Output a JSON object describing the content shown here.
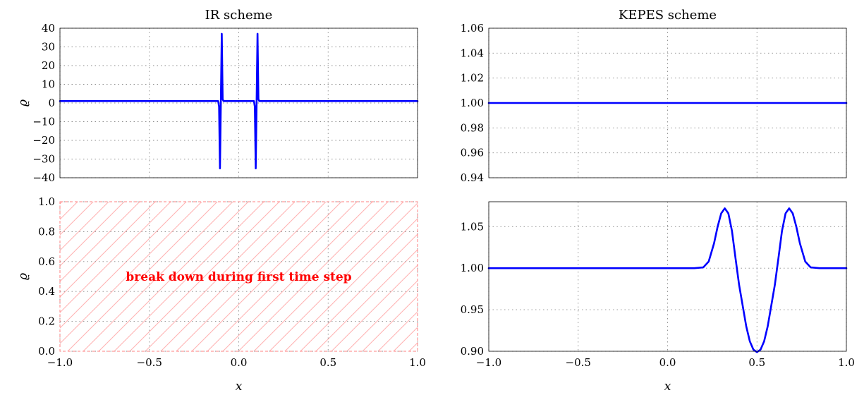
{
  "colors": {
    "series": "#0000ff",
    "breakdown": "#ff0000",
    "hatch": "#ffb3b3"
  },
  "chart_data": [
    {
      "id": "tl",
      "type": "line",
      "title": "IR scheme",
      "xlabel": "",
      "ylabel": "ϱ",
      "xlim": [
        -1.0,
        1.0
      ],
      "ylim": [
        -40,
        40
      ],
      "xticks": [
        -1.0,
        -0.5,
        0.0,
        0.5,
        1.0
      ],
      "xtick_labels": [
        "",
        "",
        "",
        "",
        ""
      ],
      "yticks": [
        40,
        30,
        20,
        10,
        0,
        -10,
        -20,
        -30,
        -40
      ],
      "ytick_labels": [
        "40",
        "30",
        "20",
        "10",
        "0",
        "−10",
        "−20",
        "−30",
        "−40"
      ],
      "grid": true,
      "series": [
        {
          "x": [
            -1.0,
            -0.115,
            -0.11,
            -0.105,
            -0.1,
            -0.095,
            -0.09,
            -0.085,
            0.085,
            0.09,
            0.095,
            0.1,
            0.105,
            0.11,
            0.115,
            1.0
          ],
          "y": [
            1,
            1,
            -2,
            -35,
            1,
            37,
            2,
            1,
            1,
            -2,
            -35,
            1,
            37,
            2,
            1,
            1
          ]
        }
      ]
    },
    {
      "id": "tr",
      "type": "line",
      "title": "KEPES scheme",
      "xlabel": "",
      "ylabel": "",
      "xlim": [
        -1.0,
        1.0
      ],
      "ylim": [
        0.94,
        1.06
      ],
      "xticks": [
        -1.0,
        -0.5,
        0.0,
        0.5,
        1.0
      ],
      "xtick_labels": [
        "",
        "",
        "",
        "",
        ""
      ],
      "yticks": [
        1.06,
        1.04,
        1.02,
        1.0,
        0.98,
        0.96,
        0.94
      ],
      "ytick_labels": [
        "1.06",
        "1.04",
        "1.02",
        "1.00",
        "0.98",
        "0.96",
        "0.94"
      ],
      "grid": true,
      "series": [
        {
          "x": [
            -1.0,
            1.0
          ],
          "y": [
            1.0,
            1.0
          ]
        }
      ]
    },
    {
      "id": "bl",
      "type": "line",
      "title": "",
      "xlabel": "x",
      "ylabel": "ϱ",
      "xlim": [
        -1.0,
        1.0
      ],
      "ylim": [
        0.0,
        1.0
      ],
      "xticks": [
        -1.0,
        -0.5,
        0.0,
        0.5,
        1.0
      ],
      "xtick_labels": [
        "−1.0",
        "−0.5",
        "0.0",
        "0.5",
        "1.0"
      ],
      "yticks": [
        1.0,
        0.8,
        0.6,
        0.4,
        0.2,
        0.0
      ],
      "ytick_labels": [
        "1.0",
        "0.8",
        "0.6",
        "0.4",
        "0.2",
        "0.0"
      ],
      "grid": true,
      "annotation": "break down during first time step",
      "series": []
    },
    {
      "id": "br",
      "type": "line",
      "title": "",
      "xlabel": "x",
      "ylabel": "",
      "xlim": [
        -1.0,
        1.0
      ],
      "ylim": [
        0.9,
        1.08
      ],
      "xticks": [
        -1.0,
        -0.5,
        0.0,
        0.5,
        1.0
      ],
      "xtick_labels": [
        "−1.0",
        "−0.5",
        "0.0",
        "0.5",
        "1.0"
      ],
      "yticks": [
        1.05,
        1.0,
        0.95,
        0.9
      ],
      "ytick_labels": [
        "1.05",
        "1.00",
        "0.95",
        "0.90"
      ],
      "grid": true,
      "series": [
        {
          "x": [
            -1.0,
            0.15,
            0.2,
            0.23,
            0.26,
            0.28,
            0.3,
            0.32,
            0.34,
            0.36,
            0.38,
            0.4,
            0.42,
            0.44,
            0.46,
            0.48,
            0.5,
            0.52,
            0.54,
            0.56,
            0.58,
            0.6,
            0.62,
            0.64,
            0.66,
            0.68,
            0.7,
            0.72,
            0.74,
            0.77,
            0.8,
            0.85,
            1.0
          ],
          "y": [
            1.0,
            1.0,
            1.001,
            1.008,
            1.03,
            1.05,
            1.066,
            1.072,
            1.066,
            1.045,
            1.012,
            0.98,
            0.955,
            0.93,
            0.912,
            0.902,
            0.899,
            0.902,
            0.912,
            0.93,
            0.955,
            0.98,
            1.012,
            1.045,
            1.066,
            1.072,
            1.066,
            1.05,
            1.03,
            1.008,
            1.001,
            1.0,
            1.0
          ]
        }
      ]
    }
  ]
}
